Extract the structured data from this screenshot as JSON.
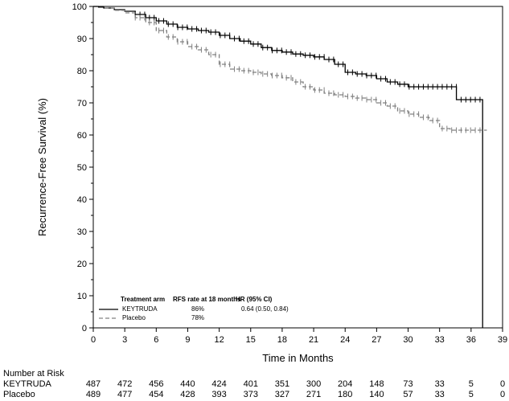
{
  "chart_data": {
    "type": "line",
    "title": "",
    "xlabel": "Time in Months",
    "ylabel": "Recurrence-Free Survival (%)",
    "xlim": [
      0,
      39
    ],
    "ylim": [
      0,
      100
    ],
    "x_ticks": [
      0,
      3,
      6,
      9,
      12,
      15,
      18,
      21,
      24,
      27,
      30,
      33,
      36,
      39
    ],
    "y_ticks": [
      0,
      10,
      20,
      30,
      40,
      50,
      60,
      70,
      80,
      90,
      100
    ],
    "grid": false,
    "legend_position": "bottom-left",
    "legend": {
      "header": {
        "arm": "Treatment arm",
        "rate": "RFS rate at 18 months",
        "hr": "HR (95% CI)"
      },
      "rows": [
        {
          "arm": "KEYTRUDA",
          "rate": "86%",
          "hr": "0.64 (0.50, 0.84)"
        },
        {
          "arm": "Placebo",
          "rate": "78%",
          "hr": ""
        }
      ]
    },
    "series": [
      {
        "name": "KEYTRUDA",
        "color": "#000000",
        "style": "solid",
        "x": [
          0,
          0.5,
          1,
          2,
          3,
          4,
          5,
          6,
          7,
          8,
          9,
          10,
          11,
          12,
          13,
          14,
          15,
          16,
          17,
          18,
          19,
          20,
          21,
          22,
          23,
          24,
          25,
          26,
          27,
          28,
          29,
          30,
          31,
          32,
          33,
          34,
          34.6,
          35,
          36,
          37,
          37.1
        ],
        "y": [
          100,
          99.8,
          99.5,
          99,
          98.5,
          97.5,
          96.5,
          95.5,
          94.5,
          93.5,
          93,
          92.5,
          92,
          91,
          90,
          89.2,
          88.3,
          87.2,
          86.3,
          85.8,
          85.2,
          84.8,
          84.3,
          83.5,
          82,
          79.5,
          79,
          78.5,
          77.5,
          76.5,
          75.8,
          75,
          75,
          75,
          75,
          75,
          71,
          71,
          71,
          71,
          0
        ]
      },
      {
        "name": "Placebo",
        "color": "#808080",
        "style": "dashed",
        "x": [
          0,
          1,
          2,
          3,
          4,
          5,
          6,
          7,
          8,
          9,
          10,
          11,
          12,
          13,
          14,
          15,
          16,
          17,
          18,
          19,
          20,
          21,
          22,
          23,
          24,
          25,
          26,
          27,
          28,
          29,
          30,
          31,
          32,
          33,
          34,
          35,
          36,
          37.5
        ],
        "y": [
          100,
          99.5,
          98.8,
          98,
          96.5,
          95,
          92.5,
          90.5,
          89,
          87.5,
          86.5,
          85,
          82,
          80.5,
          80,
          79.5,
          79,
          78.5,
          77.8,
          76.5,
          75,
          74,
          73,
          72.5,
          72,
          71.5,
          71,
          70,
          69,
          67.5,
          66.5,
          65.5,
          64.5,
          62,
          61.5,
          61.5,
          61.5,
          61.5
        ]
      }
    ],
    "risk_table": {
      "title": "Number at Risk",
      "times": [
        0,
        3,
        6,
        9,
        12,
        15,
        18,
        21,
        24,
        27,
        30,
        33,
        36,
        39
      ],
      "rows": [
        {
          "label": "KEYTRUDA",
          "counts": [
            "487",
            "472",
            "456",
            "440",
            "424",
            "401",
            "351",
            "300",
            "204",
            "148",
            "73",
            "33",
            "5",
            "0"
          ]
        },
        {
          "label": "Placebo",
          "counts": [
            "489",
            "477",
            "454",
            "428",
            "393",
            "373",
            "327",
            "271",
            "180",
            "140",
            "57",
            "33",
            "5",
            "0"
          ]
        }
      ]
    }
  }
}
